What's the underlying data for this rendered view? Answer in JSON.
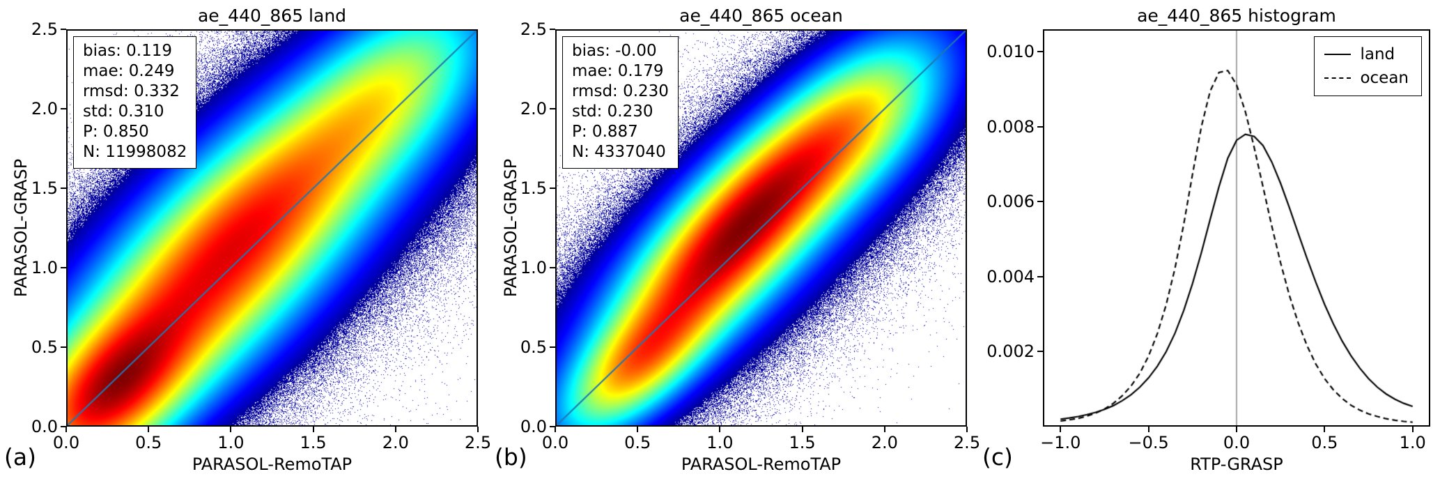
{
  "figure": {
    "background": "#ffffff"
  },
  "chart_data": [
    {
      "type": "scatter",
      "representation": "density-heatmap",
      "panel_label": "(a)",
      "title": "ae_440_865 land",
      "xlabel": "PARASOL-RemoTAP",
      "ylabel": "PARASOL-GRASP",
      "xlim": [
        0,
        2.5
      ],
      "ylim": [
        0,
        2.5
      ],
      "xticks": {
        "values": [
          0,
          0.5,
          1.0,
          1.5,
          2.0,
          2.5
        ],
        "labels": [
          "0.0",
          "0.5",
          "1.0",
          "1.5",
          "2.0",
          "2.5"
        ]
      },
      "yticks": {
        "values": [
          0,
          0.5,
          1.0,
          1.5,
          2.0,
          2.5
        ],
        "labels": [
          "0.0",
          "0.5",
          "1.0",
          "1.5",
          "2.0",
          "2.5"
        ]
      },
      "stats": {
        "bias": 0.119,
        "mae": 0.249,
        "rmsd": 0.332,
        "std": 0.31,
        "P": 0.85,
        "N": 11998082
      },
      "stats_text": "bias: 0.119\nmae: 0.249\nrmsd: 0.332\nstd: 0.310\nP: 0.850\nN: 11998082",
      "colormap": "jet",
      "identity_line_color": "#1f77b4",
      "density_model": [
        [
          1.0,
          0.25,
          0.2,
          0.4,
          0.22
        ],
        [
          0.6,
          0.75,
          0.8,
          0.55,
          0.28
        ],
        [
          0.62,
          1.25,
          1.4,
          0.55,
          0.26
        ],
        [
          0.45,
          1.95,
          2.1,
          0.45,
          0.24
        ],
        [
          0.3,
          1.05,
          1.15,
          1.4,
          0.45
        ],
        [
          0.012,
          1.2,
          1.25,
          1.8,
          0.95
        ]
      ]
    },
    {
      "type": "scatter",
      "representation": "density-heatmap",
      "panel_label": "(b)",
      "title": "ae_440_865 ocean",
      "xlabel": "PARASOL-RemoTAP",
      "ylabel": "PARASOL-GRASP",
      "xlim": [
        0,
        2.5
      ],
      "ylim": [
        0,
        2.5
      ],
      "xticks": {
        "values": [
          0,
          0.5,
          1.0,
          1.5,
          2.0,
          2.5
        ],
        "labels": [
          "0.0",
          "0.5",
          "1.0",
          "1.5",
          "2.0",
          "2.5"
        ]
      },
      "yticks": {
        "values": [
          0,
          0.5,
          1.0,
          1.5,
          2.0,
          2.5
        ],
        "labels": [
          "0.0",
          "0.5",
          "1.0",
          "1.5",
          "2.0",
          "2.5"
        ]
      },
      "stats": {
        "bias": -0.0,
        "mae": 0.179,
        "rmsd": 0.23,
        "std": 0.23,
        "P": 0.887,
        "N": 4337040
      },
      "stats_text": "bias: -0.00\nmae: 0.179\nrmsd: 0.230\nstd: 0.230\nP: 0.887\nN: 4337040",
      "colormap": "jet",
      "identity_line_color": "#1f77b4",
      "density_model": [
        [
          0.8,
          0.5,
          0.4,
          0.35,
          0.16
        ],
        [
          1.0,
          1.3,
          1.45,
          0.5,
          0.2
        ],
        [
          0.7,
          0.9,
          0.95,
          0.45,
          0.2
        ],
        [
          0.5,
          1.85,
          1.95,
          0.4,
          0.22
        ],
        [
          0.28,
          1.15,
          1.2,
          1.2,
          0.38
        ],
        [
          0.01,
          1.2,
          1.25,
          1.7,
          0.8
        ]
      ]
    },
    {
      "type": "line",
      "panel_label": "(c)",
      "title": "ae_440_865 histogram",
      "xlabel": "RTP-GRASP",
      "ylabel": "",
      "xlim": [
        -1.1,
        1.1
      ],
      "ylim": [
        0,
        0.0106
      ],
      "xticks": {
        "values": [
          -1.0,
          -0.5,
          0.0,
          0.5,
          1.0
        ],
        "labels": [
          "−1.0",
          "−0.5",
          "0.0",
          "0.5",
          "1.0"
        ]
      },
      "yticks": {
        "values": [
          0.002,
          0.004,
          0.006,
          0.008,
          0.01
        ],
        "labels": [
          "0.002",
          "0.004",
          "0.006",
          "0.008",
          "0.010"
        ]
      },
      "vline_x": 0,
      "vline_color": "#777777",
      "legend_position": "upper right",
      "x": [
        -1.0,
        -0.95,
        -0.9,
        -0.85,
        -0.8,
        -0.75,
        -0.7,
        -0.65,
        -0.6,
        -0.55,
        -0.5,
        -0.45,
        -0.4,
        -0.35,
        -0.3,
        -0.25,
        -0.2,
        -0.15,
        -0.1,
        -0.05,
        0.0,
        0.05,
        0.1,
        0.15,
        0.2,
        0.25,
        0.3,
        0.35,
        0.4,
        0.45,
        0.5,
        0.55,
        0.6,
        0.65,
        0.7,
        0.75,
        0.8,
        0.85,
        0.9,
        0.95,
        1.0
      ],
      "series": [
        {
          "name": "land",
          "style": "solid",
          "color": "#000000",
          "values": [
            0.0002,
            0.00023,
            0.00027,
            0.00032,
            0.00038,
            0.00046,
            0.00056,
            0.00069,
            0.00085,
            0.00105,
            0.0013,
            0.00161,
            0.002,
            0.00249,
            0.0031,
            0.00382,
            0.00464,
            0.00553,
            0.0064,
            0.00716,
            0.00764,
            0.0078,
            0.00774,
            0.0075,
            0.00706,
            0.00649,
            0.00584,
            0.00516,
            0.00449,
            0.00385,
            0.00326,
            0.00274,
            0.00228,
            0.00189,
            0.00156,
            0.00128,
            0.00105,
            0.00087,
            0.00073,
            0.00062,
            0.00054
          ]
        },
        {
          "name": "ocean",
          "style": "dashed",
          "color": "#000000",
          "values": [
            0.00015,
            0.00018,
            0.00022,
            0.00028,
            0.00036,
            0.00047,
            0.00062,
            0.00082,
            0.00108,
            0.00142,
            0.00188,
            0.00248,
            0.00325,
            0.00422,
            0.0054,
            0.00674,
            0.008,
            0.00895,
            0.00945,
            0.0095,
            0.00912,
            0.0084,
            0.00745,
            0.0064,
            0.00535,
            0.00437,
            0.0035,
            0.00277,
            0.00216,
            0.00167,
            0.00128,
            0.00098,
            0.00075,
            0.00057,
            0.00044,
            0.00034,
            0.00027,
            0.00021,
            0.00017,
            0.00014,
            0.00012
          ]
        }
      ]
    }
  ]
}
